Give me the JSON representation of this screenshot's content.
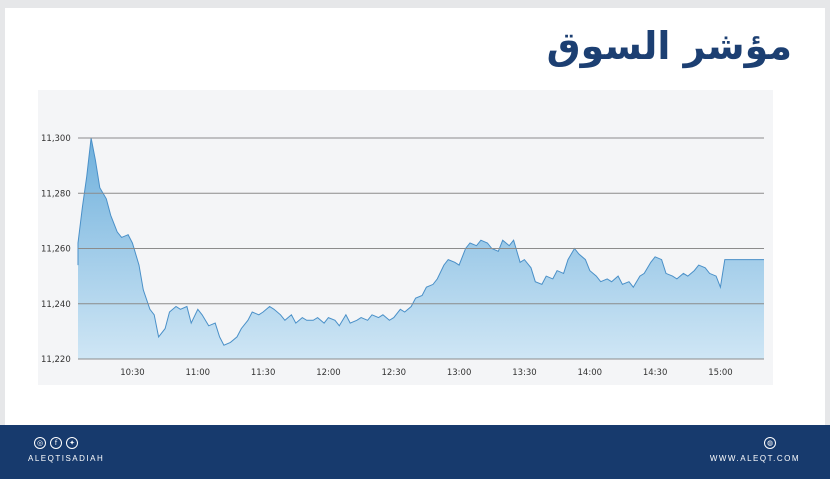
{
  "title": "مؤشر السوق",
  "footer": {
    "left_text": "ALEQTISADIAH",
    "left_icons": [
      "instagram-icon",
      "facebook-icon",
      "twitter-icon"
    ],
    "right_text": "WWW.ALEQT.COM",
    "right_icons": [
      "globe-icon"
    ]
  },
  "colors": {
    "title": "#1c3f72",
    "footer": "#173a6d",
    "area_top": "#6fb0dc",
    "area_bottom": "#cfe6f5",
    "line": "#4a90c8"
  },
  "chart_data": {
    "type": "area",
    "title": "",
    "xlabel": "",
    "ylabel": "",
    "xlim": [
      "10:05",
      "15:20"
    ],
    "ylim": [
      11220,
      11300
    ],
    "yticks": [
      "11,220",
      "11,240",
      "11,260",
      "11,280",
      "11,300"
    ],
    "xticks": [
      "10:30",
      "11:00",
      "11:30",
      "12:00",
      "12:30",
      "13:00",
      "13:30",
      "14:00",
      "14:30",
      "15:00"
    ],
    "grid": "horizontal",
    "legend": "none",
    "series": [
      {
        "x": [
          "10:00",
          "10:02",
          "10:05",
          "10:07",
          "10:09",
          "10:11",
          "10:13",
          "10:15",
          "10:18",
          "10:20",
          "10:23",
          "10:25",
          "10:28",
          "10:30",
          "10:33",
          "10:35",
          "10:38",
          "10:40",
          "10:42",
          "10:45",
          "10:47",
          "10:50",
          "10:52",
          "10:55",
          "10:57",
          "11:00",
          "11:02",
          "11:05",
          "11:08",
          "11:10",
          "11:12",
          "11:15",
          "11:18",
          "11:20",
          "11:23",
          "11:25",
          "11:28",
          "11:30",
          "11:33",
          "11:35",
          "11:38",
          "11:40",
          "11:43",
          "11:45",
          "11:48",
          "11:50",
          "11:53",
          "11:55",
          "11:58",
          "12:00",
          "12:03",
          "12:05",
          "12:08",
          "12:10",
          "12:13",
          "12:15",
          "12:18",
          "12:20",
          "12:23",
          "12:25",
          "12:28",
          "12:30",
          "12:33",
          "12:35",
          "12:38",
          "12:40",
          "12:43",
          "12:45",
          "12:48",
          "12:50",
          "12:53",
          "12:55",
          "12:58",
          "13:00",
          "13:03",
          "13:05",
          "13:08",
          "13:10",
          "13:13",
          "13:15",
          "13:18",
          "13:20",
          "13:23",
          "13:25",
          "13:28",
          "13:30",
          "13:33",
          "13:35",
          "13:38",
          "13:40",
          "13:43",
          "13:45",
          "13:48",
          "13:50",
          "13:53",
          "13:55",
          "13:58",
          "14:00",
          "14:03",
          "14:05",
          "14:08",
          "14:10",
          "14:13",
          "14:15",
          "14:18",
          "14:20",
          "14:23",
          "14:25",
          "14:28",
          "14:30",
          "14:33",
          "14:35",
          "14:38",
          "14:40",
          "14:43",
          "14:45",
          "14:48",
          "14:50",
          "14:53",
          "14:55",
          "14:58",
          "15:00",
          "15:02",
          "15:05",
          "15:08",
          "15:10",
          "15:13",
          "15:15",
          "15:20"
        ],
        "values": [
          11256,
          11254,
          11262,
          11275,
          11286,
          11300,
          11292,
          11282,
          11278,
          11272,
          11266,
          11264,
          11265,
          11262,
          11254,
          11245,
          11238,
          11236,
          11228,
          11231,
          11237,
          11239,
          11238,
          11239,
          11233,
          11238,
          11236,
          11232,
          11233,
          11228,
          11225,
          11226,
          11228,
          11231,
          11234,
          11237,
          11236,
          11237,
          11239,
          11238,
          11236,
          11234,
          11236,
          11233,
          11235,
          11234,
          11234,
          11235,
          11233,
          11235,
          11234,
          11232,
          11236,
          11233,
          11234,
          11235,
          11234,
          11236,
          11235,
          11236,
          11234,
          11235,
          11238,
          11237,
          11239,
          11242,
          11243,
          11246,
          11247,
          11249,
          11254,
          11256,
          11255,
          11254,
          11260,
          11262,
          11261,
          11263,
          11262,
          11260,
          11259,
          11263,
          11261,
          11263,
          11255,
          11256,
          11253,
          11248,
          11247,
          11250,
          11249,
          11252,
          11251,
          11256,
          11260,
          11258,
          11256,
          11252,
          11250,
          11248,
          11249,
          11248,
          11250,
          11247,
          11248,
          11246,
          11250,
          11251,
          11255,
          11257,
          11256,
          11251,
          11250,
          11249,
          11251,
          11250,
          11252,
          11254,
          11253,
          11251,
          11250,
          11246,
          11256,
          11256,
          11256,
          11256,
          11256,
          11256,
          11256
        ]
      }
    ]
  }
}
